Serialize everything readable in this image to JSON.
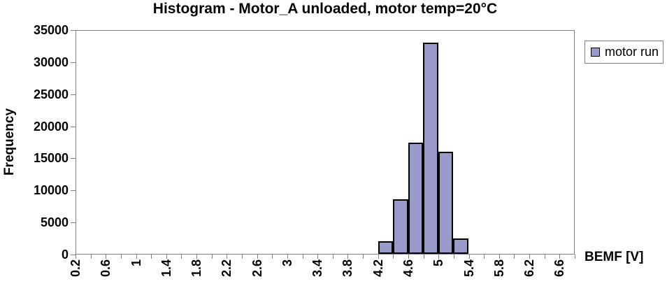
{
  "chart_data": {
    "type": "bar",
    "title": "Histogram - Motor_A unloaded, motor temp=20°C",
    "xlabel": "BEMF [V]",
    "ylabel": "Frequency",
    "legend": {
      "position": "right",
      "entries": [
        "motor run"
      ]
    },
    "x_axis": {
      "slot_min": 0.2,
      "slot_step": 0.2,
      "slot_count": 33,
      "tick_label_every": 2,
      "tick_labels": [
        "0.2",
        "0.6",
        "1",
        "1.4",
        "1.8",
        "2.2",
        "2.6",
        "3",
        "3.4",
        "3.8",
        "4.2",
        "4.6",
        "5",
        "5.4",
        "5.8",
        "6.2",
        "6.6"
      ]
    },
    "y_axis": {
      "min": 0,
      "max": 35000,
      "step": 5000,
      "tick_labels": [
        "0",
        "5000",
        "10000",
        "15000",
        "20000",
        "25000",
        "30000",
        "35000"
      ]
    },
    "series": [
      {
        "name": "motor run",
        "points": [
          {
            "x": 4.2,
            "count": 2000
          },
          {
            "x": 4.4,
            "count": 8600
          },
          {
            "x": 4.6,
            "count": 17400
          },
          {
            "x": 4.8,
            "count": 33100
          },
          {
            "x": 5.0,
            "count": 16000
          },
          {
            "x": 5.2,
            "count": 2450
          }
        ]
      }
    ],
    "grid": "off",
    "colors": {
      "bar_fill": "#9999CC",
      "bar_border": "#000000",
      "axis": "#808080",
      "text": "#000000"
    }
  }
}
